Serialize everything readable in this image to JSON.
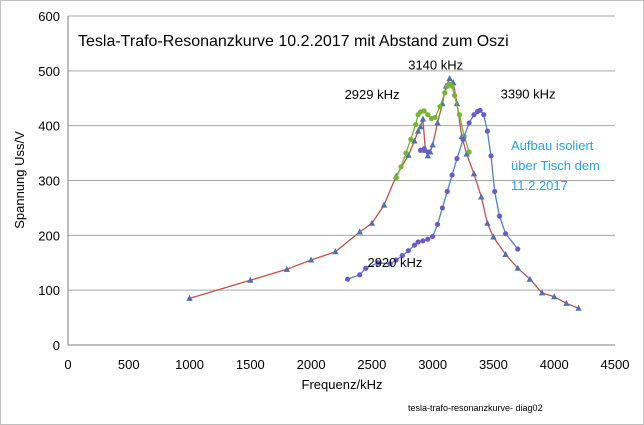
{
  "chart_data": {
    "type": "line",
    "title": "Tesla-Trafo-Resonanzkurve 10.2.2017 mit Abstand zum Oszi",
    "xlabel": "Frequenz/kHz",
    "ylabel": "Spannung Uss/V",
    "xlim": [
      0,
      4500
    ],
    "ylim": [
      0,
      600
    ],
    "xticks": [
      0,
      500,
      1000,
      1500,
      2000,
      2500,
      3000,
      3500,
      4000,
      4500
    ],
    "yticks": [
      0,
      100,
      200,
      300,
      400,
      500,
      600
    ],
    "grid": "horizontal",
    "footer": "tesla-trafo-resonanzkurve- diag02",
    "series": [
      {
        "color": "#C0504D",
        "marker": "triangle",
        "markerColor": "#4F6FAF",
        "points": [
          [
            1000,
            85
          ],
          [
            1500,
            118
          ],
          [
            1800,
            138
          ],
          [
            2000,
            155
          ],
          [
            2200,
            170
          ],
          [
            2400,
            206
          ],
          [
            2500,
            222
          ],
          [
            2600,
            255
          ],
          [
            2700,
            308
          ],
          [
            2800,
            346
          ],
          [
            2850,
            372
          ],
          [
            2880,
            390
          ],
          [
            2900,
            398
          ],
          [
            2920,
            412
          ],
          [
            2940,
            355
          ],
          [
            2960,
            345
          ],
          [
            2980,
            352
          ],
          [
            3000,
            365
          ],
          [
            3040,
            405
          ],
          [
            3080,
            440
          ],
          [
            3110,
            472
          ],
          [
            3140,
            486
          ],
          [
            3170,
            478
          ],
          [
            3200,
            440
          ],
          [
            3240,
            380
          ],
          [
            3280,
            348
          ],
          [
            3340,
            312
          ],
          [
            3400,
            270
          ],
          [
            3450,
            222
          ],
          [
            3500,
            197
          ],
          [
            3600,
            165
          ],
          [
            3700,
            140
          ],
          [
            3800,
            120
          ],
          [
            3900,
            95
          ],
          [
            4000,
            88
          ],
          [
            4100,
            76
          ],
          [
            4200,
            67
          ]
        ]
      },
      {
        "color": "#76B530",
        "marker": "circle",
        "markerColor": "#76B530",
        "points": [
          [
            2700,
            305
          ],
          [
            2740,
            325
          ],
          [
            2780,
            350
          ],
          [
            2820,
            375
          ],
          [
            2860,
            402
          ],
          [
            2880,
            420
          ],
          [
            2900,
            425
          ],
          [
            2929,
            427
          ],
          [
            2960,
            420
          ],
          [
            2990,
            413
          ],
          [
            3020,
            415
          ],
          [
            3060,
            435
          ],
          [
            3100,
            460
          ],
          [
            3120,
            472
          ],
          [
            3140,
            476
          ],
          [
            3160,
            472
          ],
          [
            3180,
            455
          ],
          [
            3220,
            420
          ],
          [
            3260,
            380
          ],
          [
            3300,
            352
          ]
        ]
      },
      {
        "color": "#4F81BD",
        "marker": "circle",
        "markerColor": "#6A5ACD",
        "points": [
          [
            2300,
            120
          ],
          [
            2400,
            128
          ],
          [
            2450,
            140
          ],
          [
            2550,
            150
          ],
          [
            2650,
            148
          ],
          [
            2700,
            155
          ],
          [
            2750,
            163
          ],
          [
            2800,
            172
          ],
          [
            2850,
            182
          ],
          [
            2880,
            188
          ],
          [
            2920,
            190
          ],
          [
            2960,
            193
          ],
          [
            3000,
            198
          ],
          [
            3040,
            220
          ],
          [
            3080,
            250
          ],
          [
            3120,
            280
          ],
          [
            3160,
            310
          ],
          [
            3200,
            340
          ],
          [
            3250,
            375
          ],
          [
            3300,
            405
          ],
          [
            3340,
            420
          ],
          [
            3370,
            426
          ],
          [
            3390,
            428
          ],
          [
            3420,
            420
          ],
          [
            3450,
            390
          ],
          [
            3480,
            345
          ],
          [
            3510,
            280
          ],
          [
            3550,
            235
          ],
          [
            3600,
            203
          ],
          [
            3700,
            175
          ]
        ]
      },
      {
        "color": "#4F81BD",
        "marker": "circle",
        "markerColor": "#6A5ACD",
        "points": [
          [
            2900,
            355
          ],
          [
            2930,
            358
          ],
          [
            2960,
            352
          ]
        ]
      }
    ],
    "annotations": [
      {
        "text": "3140 kHz",
        "x": 3140,
        "y": 486,
        "color": "#000000"
      },
      {
        "text": "2929 kHz",
        "x": 2929,
        "y": 427,
        "color": "#000000"
      },
      {
        "text": "3390 kHz",
        "x": 3390,
        "y": 428,
        "color": "#000000"
      },
      {
        "text": "2920 kHz",
        "x": 2920,
        "y": 190,
        "color": "#000000"
      }
    ],
    "note": {
      "lines": [
        "Aufbau  isoliert",
        "über Tisch dem",
        "11.2.2017"
      ],
      "color": "#2AA1D5"
    }
  }
}
